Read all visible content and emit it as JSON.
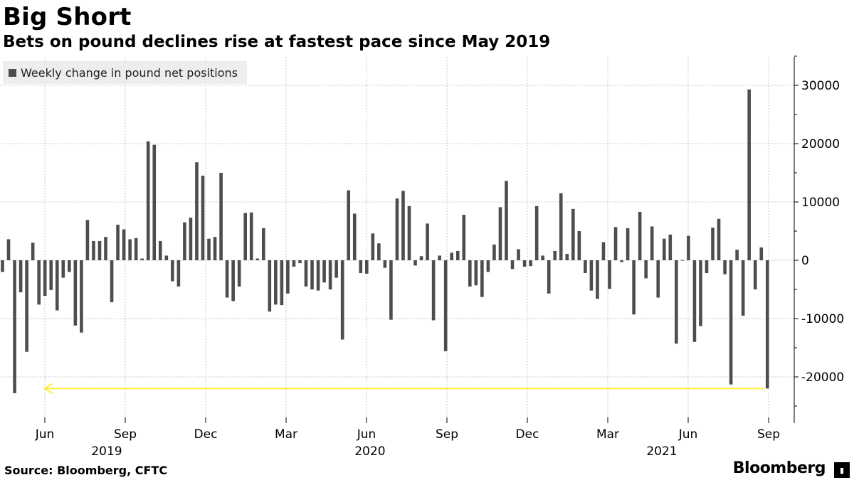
{
  "header": {
    "title": "Big Short",
    "subtitle": "Bets on pound declines rise at fastest pace since May 2019"
  },
  "footer": {
    "source": "Source: Bloomberg, CFTC",
    "brand": "Bloomberg"
  },
  "colors": {
    "bar": "#4d4d4d",
    "arrow": "#ffef3a",
    "grid": "#c8c8c8"
  },
  "chart_data": {
    "type": "bar",
    "title": "Big Short",
    "subtitle": "Bets on pound declines rise at fastest pace since May 2019",
    "legend": [
      "Weekly change in pound net positions"
    ],
    "legend_position": "top-left",
    "ylim": [
      -25000,
      35000
    ],
    "yticks": [
      30000,
      20000,
      10000,
      0,
      -10000,
      -20000
    ],
    "ytick_labels": [
      "30000",
      "20000",
      "10000",
      "0",
      "-10000",
      "-20000"
    ],
    "x_month_ticks": [
      "Jun",
      "Sep",
      "Dec",
      "Mar",
      "Jun",
      "Sep",
      "Dec",
      "Mar",
      "Jun",
      "Sep"
    ],
    "x_year_labels": [
      "2019",
      "2020",
      "2021"
    ],
    "grid": true,
    "annotation": "arrow from latest weekly change back to comparable decline in May 2019",
    "series": [
      {
        "name": "Weekly change in pound net positions",
        "values": [
          -2000,
          3600,
          -22800,
          -5500,
          -15700,
          3000,
          -7600,
          -6100,
          -5100,
          -8600,
          -3000,
          -2000,
          -11200,
          -12400,
          6900,
          3300,
          3300,
          4000,
          -7200,
          6100,
          5300,
          3600,
          3800,
          300,
          20400,
          19800,
          3300,
          800,
          -3600,
          -4500,
          6500,
          7300,
          16800,
          14500,
          3700,
          4000,
          15000,
          -6400,
          -7000,
          -4500,
          8100,
          8200,
          300,
          5500,
          -8800,
          -7600,
          -7700,
          -5700,
          -1100,
          -500,
          -4500,
          -5000,
          -5200,
          -3800,
          -5000,
          -3000,
          -13600,
          12000,
          8000,
          -2200,
          -2300,
          4600,
          2900,
          -1300,
          -10200,
          10600,
          11900,
          9300,
          -900,
          700,
          6300,
          -10300,
          800,
          -15600,
          1300,
          1600,
          7800,
          -4500,
          -4300,
          -6300,
          -2000,
          2700,
          9100,
          13600,
          -1500,
          1900,
          -1100,
          -1000,
          9300,
          800,
          -5700,
          1600,
          11500,
          1100,
          8800,
          5000,
          -2200,
          -5200,
          -6600,
          3100,
          -4900,
          5700,
          -300,
          5500,
          -9300,
          8300,
          -3100,
          5800,
          -6400,
          3700,
          4400,
          -14300,
          50,
          4200,
          -14000,
          -11300,
          -2200,
          5600,
          7100,
          -2400,
          -21300,
          1800,
          -9500,
          29300,
          -5000,
          2200,
          -22000
        ]
      }
    ]
  }
}
